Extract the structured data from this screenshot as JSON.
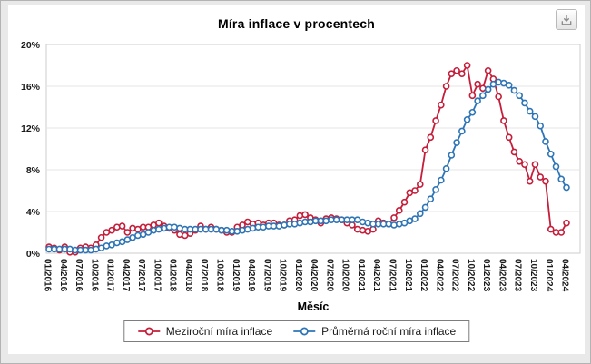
{
  "toolbar": {
    "download_button": {
      "icon": "download-icon"
    }
  },
  "chart_data": {
    "type": "line",
    "title": "Míra inflace v procentech",
    "xlabel": "Měsíc",
    "ylabel": "",
    "ylim": [
      0,
      20
    ],
    "ytick_values": [
      0,
      4,
      8,
      12,
      16,
      20
    ],
    "ytick_labels": [
      "0%",
      "4%",
      "8%",
      "12%",
      "16%",
      "20%"
    ],
    "xtick_every": 3,
    "xtick_labels": [
      "01/2016",
      "04/2016",
      "07/2016",
      "10/2016",
      "01/2017",
      "04/2017",
      "07/2017",
      "10/2017",
      "01/2018",
      "04/2018",
      "07/2018",
      "10/2018",
      "01/2019",
      "04/2019",
      "07/2019",
      "10/2019",
      "01/2020",
      "04/2020",
      "07/2020",
      "10/2020",
      "01/2021",
      "04/2021",
      "07/2021",
      "10/2021",
      "01/2022",
      "04/2022",
      "07/2022",
      "10/2022",
      "01/2023",
      "04/2023",
      "07/2023",
      "10/2023",
      "01/2024",
      "04/2024"
    ],
    "grid": "horizontal",
    "grid_color": "#e4e4e4",
    "plot_border_color": "#cccccc",
    "legend_position": "bottom",
    "series": [
      {
        "name": "Meziroční míra inflace",
        "color": "#c41e3a",
        "marker": "circle-open",
        "values": [
          0.6,
          0.5,
          0.3,
          0.6,
          0.1,
          0.1,
          0.5,
          0.6,
          0.5,
          0.8,
          1.5,
          2.0,
          2.2,
          2.5,
          2.6,
          2.0,
          2.4,
          2.3,
          2.5,
          2.5,
          2.7,
          2.9,
          2.6,
          2.4,
          2.2,
          1.8,
          1.7,
          1.9,
          2.2,
          2.6,
          2.3,
          2.5,
          2.3,
          2.2,
          2.0,
          2.0,
          2.5,
          2.7,
          3.0,
          2.8,
          2.9,
          2.7,
          2.9,
          2.9,
          2.7,
          2.7,
          3.1,
          3.2,
          3.6,
          3.7,
          3.4,
          3.2,
          2.9,
          3.3,
          3.4,
          3.3,
          3.2,
          2.9,
          2.7,
          2.3,
          2.2,
          2.1,
          2.3,
          3.1,
          2.9,
          2.8,
          3.4,
          4.1,
          4.9,
          5.8,
          6.0,
          6.6,
          9.9,
          11.1,
          12.7,
          14.2,
          16.0,
          17.2,
          17.5,
          17.2,
          18.0,
          15.1,
          16.2,
          15.8,
          17.5,
          16.7,
          15.0,
          12.7,
          11.1,
          9.7,
          8.8,
          8.5,
          6.9,
          8.5,
          7.3,
          6.9,
          2.3,
          2.0,
          2.0,
          2.9
        ]
      },
      {
        "name": "Průměrná roční míra inflace",
        "color": "#2e75b6",
        "marker": "circle-open",
        "values": [
          0.4,
          0.4,
          0.4,
          0.4,
          0.4,
          0.3,
          0.3,
          0.3,
          0.3,
          0.4,
          0.5,
          0.7,
          0.8,
          1.0,
          1.1,
          1.3,
          1.5,
          1.7,
          1.8,
          2.0,
          2.2,
          2.3,
          2.4,
          2.5,
          2.5,
          2.4,
          2.3,
          2.3,
          2.3,
          2.3,
          2.3,
          2.3,
          2.3,
          2.2,
          2.2,
          2.1,
          2.1,
          2.2,
          2.3,
          2.4,
          2.5,
          2.5,
          2.6,
          2.6,
          2.6,
          2.7,
          2.8,
          2.8,
          2.9,
          3.0,
          3.0,
          3.1,
          3.1,
          3.1,
          3.2,
          3.2,
          3.2,
          3.2,
          3.2,
          3.2,
          3.0,
          2.9,
          2.8,
          2.8,
          2.8,
          2.8,
          2.7,
          2.8,
          2.9,
          3.1,
          3.3,
          3.8,
          4.4,
          5.2,
          6.1,
          7.0,
          8.1,
          9.4,
          10.6,
          11.7,
          12.8,
          13.5,
          14.6,
          15.1,
          15.7,
          16.2,
          16.4,
          16.3,
          16.1,
          15.6,
          15.1,
          14.4,
          13.6,
          13.1,
          12.2,
          10.7,
          9.5,
          8.3,
          7.1,
          6.3
        ]
      }
    ]
  }
}
